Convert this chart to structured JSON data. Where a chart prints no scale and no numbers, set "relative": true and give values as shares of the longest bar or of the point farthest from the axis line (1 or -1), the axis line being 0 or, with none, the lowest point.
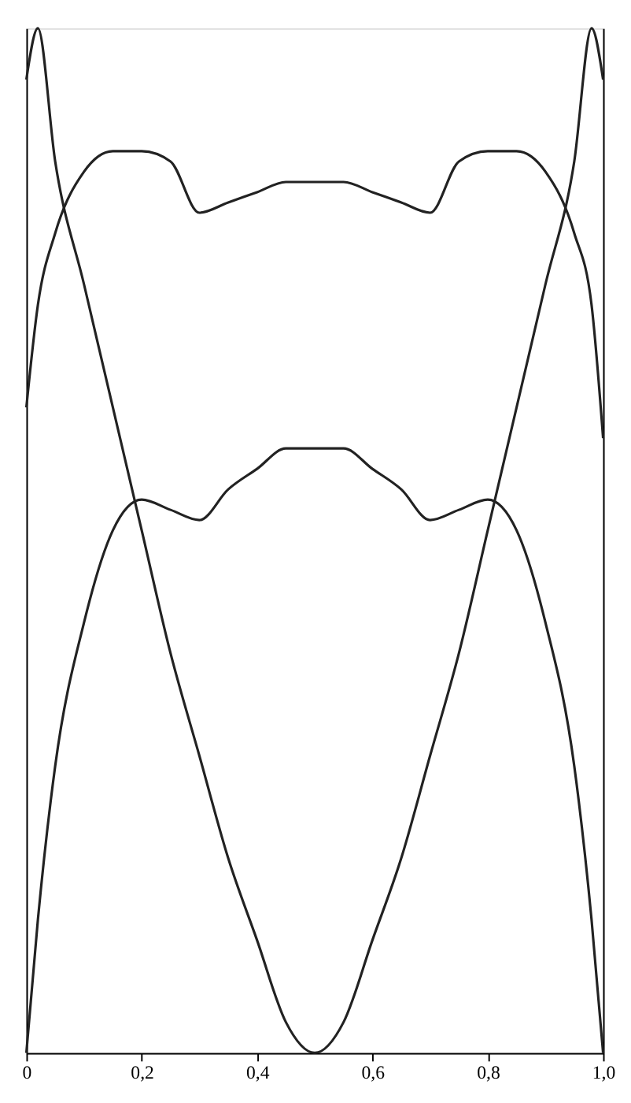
{
  "chart_data": {
    "type": "line",
    "relative": true,
    "x": [
      0,
      0.02,
      0.05,
      0.1,
      0.15,
      0.2,
      0.25,
      0.3,
      0.35,
      0.4,
      0.45,
      0.5,
      0.55,
      0.6,
      0.65,
      0.7,
      0.75,
      0.8,
      0.85,
      0.9,
      0.95,
      0.98,
      1.0
    ],
    "xlim": [
      0,
      1.0
    ],
    "xticks": [
      0,
      {
        "value": 0.2,
        "label": "0,2"
      },
      {
        "value": 0.4,
        "label": "0,4"
      },
      {
        "value": 0.6,
        "label": "0,6"
      },
      {
        "value": 0.8,
        "label": "0,8"
      },
      {
        "value": 1.0,
        "label": "1,0"
      }
    ],
    "series": [
      {
        "color": "#222222",
        "values": [
          0.95,
          1.0,
          0.87,
          0.75,
          0.63,
          0.51,
          0.39,
          0.29,
          0.19,
          0.11,
          0.03,
          0.0,
          0.03,
          0.11,
          0.19,
          0.29,
          0.39,
          0.51,
          0.63,
          0.75,
          0.87,
          1.0,
          0.95
        ]
      },
      {
        "color": "#222222",
        "values": [
          0.63,
          0.73,
          0.8,
          0.86,
          0.88,
          0.88,
          0.87,
          0.82,
          0.83,
          0.84,
          0.85,
          0.85,
          0.85,
          0.84,
          0.83,
          0.82,
          0.87,
          0.88,
          0.88,
          0.86,
          0.8,
          0.73,
          0.6
        ]
      },
      {
        "color": "#222222",
        "values": [
          0.0,
          0.13,
          0.28,
          0.42,
          0.51,
          0.54,
          0.53,
          0.52,
          0.55,
          0.57,
          0.59,
          0.59,
          0.59,
          0.57,
          0.55,
          0.52,
          0.53,
          0.54,
          0.51,
          0.42,
          0.28,
          0.13,
          0.0
        ]
      }
    ],
    "grid": false,
    "marker": "none",
    "line_style": "solid"
  }
}
